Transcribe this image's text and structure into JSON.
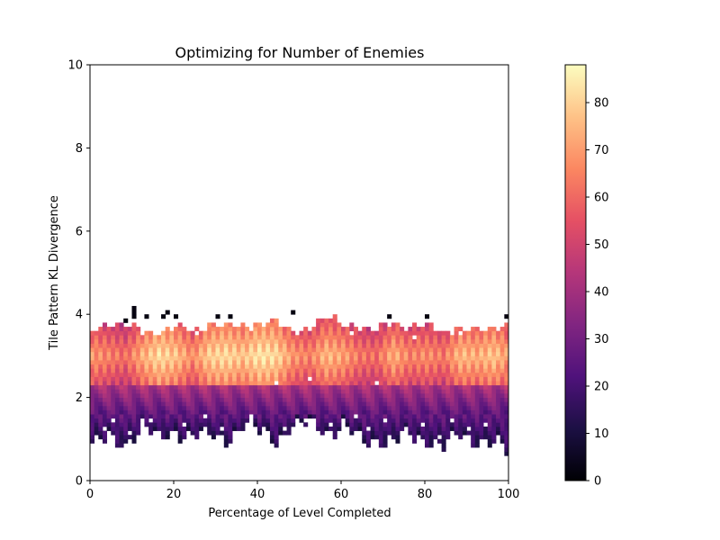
{
  "chart_data": {
    "type": "heatmap",
    "title": "Optimizing for Number of Enemies",
    "xlabel": "Percentage of Level Completed",
    "ylabel": "Tile Pattern KL Divergence",
    "xlim": [
      0,
      100
    ],
    "ylim": [
      0,
      10
    ],
    "x_ticks": [
      0,
      20,
      40,
      60,
      80,
      100
    ],
    "y_ticks": [
      0,
      2,
      4,
      6,
      8,
      10
    ],
    "grid": false,
    "colorbar": {
      "cmap": "magma",
      "vmin": 0,
      "vmax": 88,
      "ticks": [
        0,
        10,
        20,
        30,
        40,
        50,
        60,
        70,
        80
      ]
    },
    "cell_size": {
      "x": 1,
      "y": 0.1
    },
    "column_profiles": [
      {
        "x": 0,
        "y_min": 0.9,
        "y_max": 3.6,
        "peak": 70
      },
      {
        "x": 4,
        "y_min": 1.0,
        "y_max": 3.8,
        "peak": 66
      },
      {
        "x": 8,
        "y_min": 0.9,
        "y_max": 3.7,
        "peak": 62
      },
      {
        "x": 12,
        "y_min": 1.3,
        "y_max": 3.6,
        "peak": 74
      },
      {
        "x": 16,
        "y_min": 1.0,
        "y_max": 3.6,
        "peak": 82
      },
      {
        "x": 20,
        "y_min": 1.2,
        "y_max": 3.7,
        "peak": 78
      },
      {
        "x": 24,
        "y_min": 1.1,
        "y_max": 3.6,
        "peak": 68
      },
      {
        "x": 28,
        "y_min": 1.1,
        "y_max": 3.8,
        "peak": 80
      },
      {
        "x": 32,
        "y_min": 1.0,
        "y_max": 3.7,
        "peak": 82
      },
      {
        "x": 36,
        "y_min": 1.3,
        "y_max": 3.7,
        "peak": 78
      },
      {
        "x": 40,
        "y_min": 1.2,
        "y_max": 3.8,
        "peak": 84
      },
      {
        "x": 44,
        "y_min": 1.0,
        "y_max": 3.8,
        "peak": 82
      },
      {
        "x": 48,
        "y_min": 1.3,
        "y_max": 3.6,
        "peak": 70
      },
      {
        "x": 52,
        "y_min": 1.4,
        "y_max": 3.7,
        "peak": 66
      },
      {
        "x": 56,
        "y_min": 1.2,
        "y_max": 3.9,
        "peak": 76
      },
      {
        "x": 60,
        "y_min": 1.3,
        "y_max": 3.8,
        "peak": 72
      },
      {
        "x": 64,
        "y_min": 1.0,
        "y_max": 3.7,
        "peak": 64
      },
      {
        "x": 68,
        "y_min": 1.0,
        "y_max": 3.6,
        "peak": 62
      },
      {
        "x": 72,
        "y_min": 0.9,
        "y_max": 3.8,
        "peak": 74
      },
      {
        "x": 76,
        "y_min": 1.1,
        "y_max": 3.7,
        "peak": 66
      },
      {
        "x": 80,
        "y_min": 1.0,
        "y_max": 3.7,
        "peak": 68
      },
      {
        "x": 84,
        "y_min": 0.8,
        "y_max": 3.6,
        "peak": 64
      },
      {
        "x": 88,
        "y_min": 1.1,
        "y_max": 3.7,
        "peak": 76
      },
      {
        "x": 92,
        "y_min": 1.0,
        "y_max": 3.6,
        "peak": 74
      },
      {
        "x": 96,
        "y_min": 0.9,
        "y_max": 3.7,
        "peak": 78
      },
      {
        "x": 99,
        "y_min": 0.7,
        "y_max": 3.8,
        "peak": 72
      }
    ],
    "outlier_points": [
      {
        "x": 8.5,
        "y": 3.85,
        "value": 2
      },
      {
        "x": 10.5,
        "y": 4.15,
        "value": 2
      },
      {
        "x": 10.5,
        "y": 4.05,
        "value": 2
      },
      {
        "x": 10.5,
        "y": 3.95,
        "value": 2
      },
      {
        "x": 13.5,
        "y": 3.95,
        "value": 2
      },
      {
        "x": 17.5,
        "y": 3.95,
        "value": 2
      },
      {
        "x": 18.5,
        "y": 4.05,
        "value": 2
      },
      {
        "x": 20.5,
        "y": 3.95,
        "value": 2
      },
      {
        "x": 30.5,
        "y": 3.95,
        "value": 2
      },
      {
        "x": 33.5,
        "y": 3.95,
        "value": 2
      },
      {
        "x": 48.5,
        "y": 4.05,
        "value": 2
      },
      {
        "x": 71.5,
        "y": 3.95,
        "value": 2
      },
      {
        "x": 80.5,
        "y": 3.95,
        "value": 2
      },
      {
        "x": 99.5,
        "y": 3.95,
        "value": 2
      }
    ],
    "gap_cells": [
      {
        "x": 3,
        "y": 1.2
      },
      {
        "x": 5,
        "y": 1.4
      },
      {
        "x": 9,
        "y": 1.1
      },
      {
        "x": 14,
        "y": 1.4
      },
      {
        "x": 22,
        "y": 1.3
      },
      {
        "x": 27,
        "y": 1.5
      },
      {
        "x": 31,
        "y": 1.2
      },
      {
        "x": 38,
        "y": 1.5
      },
      {
        "x": 46,
        "y": 1.2
      },
      {
        "x": 51,
        "y": 1.4
      },
      {
        "x": 57,
        "y": 1.3
      },
      {
        "x": 63,
        "y": 1.5
      },
      {
        "x": 66,
        "y": 1.2
      },
      {
        "x": 70,
        "y": 1.4
      },
      {
        "x": 74,
        "y": 1.1
      },
      {
        "x": 79,
        "y": 1.3
      },
      {
        "x": 83,
        "y": 1.0
      },
      {
        "x": 86,
        "y": 1.4
      },
      {
        "x": 90,
        "y": 1.2
      },
      {
        "x": 94,
        "y": 1.3
      },
      {
        "x": 12,
        "y": 3.5
      },
      {
        "x": 25,
        "y": 3.5
      },
      {
        "x": 44,
        "y": 2.3
      },
      {
        "x": 52,
        "y": 2.4
      },
      {
        "x": 62,
        "y": 3.5
      },
      {
        "x": 68,
        "y": 2.3
      },
      {
        "x": 77,
        "y": 3.4
      },
      {
        "x": 88,
        "y": 3.5
      }
    ]
  }
}
